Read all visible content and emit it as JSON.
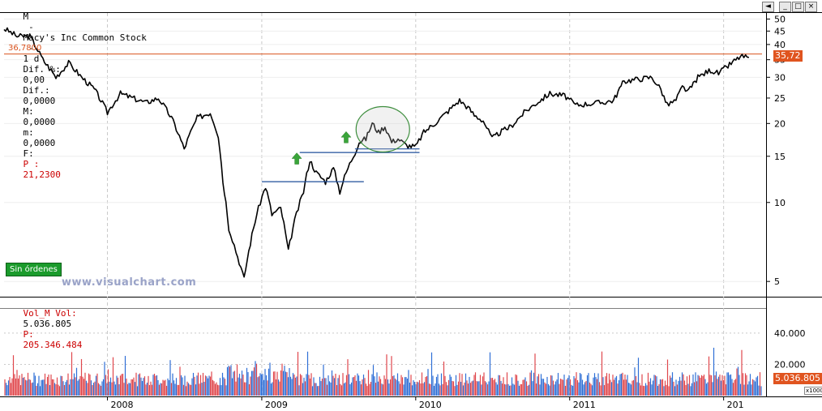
{
  "header": {
    "symbol": "M",
    "name": "Macy's Inc Common Stock",
    "period": "1 d",
    "dif_pct_label": "Dif. %:",
    "dif_pct": "0,00",
    "dif_label": "Dif.:",
    "dif": "0,0000",
    "max_label": "M:",
    "max": "0,0000",
    "min_label": "m:",
    "min": "0,0000",
    "f_label": "F:",
    "price_label": "P :",
    "price": "21,2300"
  },
  "volume_header": {
    "label": "Vol_M Vol:",
    "value": "5.036.805",
    "p_label": "P:",
    "p_value": "205.346.484"
  },
  "buttons": {
    "scroll": "◄",
    "minimize": "_",
    "maximize": "□",
    "close": "×"
  },
  "reference_line_label": "36,7800",
  "last_price_badge": "35,72",
  "last_volume_badge": "5.036.805",
  "orders_button": "Sin órdenes",
  "watermark": "www.visualchart.com",
  "volume_unit": "x1000",
  "colors": {
    "price_line": "#000000",
    "reference_line": "#d9531e",
    "trend_lines": "#1f4e9a",
    "arrows": "#3aa53a",
    "volume_up": "#2f6fd6",
    "volume_down": "#e0474c",
    "badge": "#e0541f",
    "grid": "#c9c9c9"
  },
  "chart_data": [
    {
      "type": "line",
      "y_scale": "log",
      "ylim": [
        4.5,
        52
      ],
      "y_ticks": [
        "5",
        "10",
        "15",
        "20",
        "25",
        "30",
        "35",
        "40",
        "45",
        "50"
      ],
      "x_ticks": [
        "2008",
        "2009",
        "2010",
        "2011",
        "201"
      ],
      "xlim": [
        "2007-05",
        "2012-04"
      ],
      "reference_line": 36.78,
      "series": [
        {
          "points": [
            [
              "2007-05-01",
              46
            ],
            [
              "2007-06-01",
              43
            ],
            [
              "2007-07-01",
              43
            ],
            [
              "2007-08-01",
              35
            ],
            [
              "2007-09-01",
              30
            ],
            [
              "2007-10-01",
              34
            ],
            [
              "2007-11-01",
              30
            ],
            [
              "2007-12-01",
              27
            ],
            [
              "2008-01-01",
              22
            ],
            [
              "2008-02-01",
              26
            ],
            [
              "2008-03-01",
              25
            ],
            [
              "2008-04-01",
              24
            ],
            [
              "2008-05-01",
              25
            ],
            [
              "2008-06-01",
              21
            ],
            [
              "2008-07-01",
              16
            ],
            [
              "2008-08-01",
              21
            ],
            [
              "2008-09-01",
              22
            ],
            [
              "2008-09-20",
              18
            ],
            [
              "2008-10-01",
              12
            ],
            [
              "2008-10-15",
              8
            ],
            [
              "2008-11-01",
              6.5
            ],
            [
              "2008-11-20",
              5.1
            ],
            [
              "2008-12-05",
              7.0
            ],
            [
              "2008-12-20",
              9.0
            ],
            [
              "2009-01-10",
              11.5
            ],
            [
              "2009-01-25",
              9.0
            ],
            [
              "2009-02-15",
              9.5
            ],
            [
              "2009-03-05",
              6.5
            ],
            [
              "2009-03-20",
              8.5
            ],
            [
              "2009-04-10",
              11.0
            ],
            [
              "2009-04-25",
              14.5
            ],
            [
              "2009-05-10",
              13.0
            ],
            [
              "2009-06-01",
              12.0
            ],
            [
              "2009-06-20",
              13.5
            ],
            [
              "2009-07-05",
              11.0
            ],
            [
              "2009-07-20",
              13.0
            ],
            [
              "2009-08-10",
              15.5
            ],
            [
              "2009-08-20",
              17.0
            ],
            [
              "2009-09-05",
              17.5
            ],
            [
              "2009-09-20",
              20.0
            ],
            [
              "2009-10-05",
              18.5
            ],
            [
              "2009-10-20",
              19.5
            ],
            [
              "2009-11-05",
              17.0
            ],
            [
              "2009-11-20",
              17.5
            ],
            [
              "2009-12-10",
              16.5
            ],
            [
              "2010-01-01",
              16.3
            ],
            [
              "2010-01-20",
              18.5
            ],
            [
              "2010-02-15",
              20.0
            ],
            [
              "2010-03-15",
              22.0
            ],
            [
              "2010-04-15",
              24.5
            ],
            [
              "2010-05-05",
              23.0
            ],
            [
              "2010-05-20",
              21.5
            ],
            [
              "2010-06-10",
              20.5
            ],
            [
              "2010-07-01",
              17.5
            ],
            [
              "2010-07-20",
              18.5
            ],
            [
              "2010-08-15",
              19.5
            ],
            [
              "2010-09-15",
              22.0
            ],
            [
              "2010-10-15",
              24.0
            ],
            [
              "2010-11-15",
              26.0
            ],
            [
              "2010-12-20",
              25.5
            ],
            [
              "2011-01-15",
              23.5
            ],
            [
              "2011-02-15",
              23.8
            ],
            [
              "2011-03-15",
              24.0
            ],
            [
              "2011-04-15",
              24.5
            ],
            [
              "2011-05-10",
              29.0
            ],
            [
              "2011-06-10",
              29.5
            ],
            [
              "2011-07-15",
              30.0
            ],
            [
              "2011-08-05",
              27.0
            ],
            [
              "2011-08-20",
              23.5
            ],
            [
              "2011-09-10",
              24.5
            ],
            [
              "2011-09-25",
              27.5
            ],
            [
              "2011-10-10",
              26.5
            ],
            [
              "2011-11-01",
              30.0
            ],
            [
              "2011-12-01",
              32.0
            ],
            [
              "2011-12-20",
              31.0
            ],
            [
              "2012-01-15",
              33.5
            ],
            [
              "2012-02-10",
              36.0
            ],
            [
              "2012-03-01",
              35.72
            ]
          ]
        }
      ],
      "annotations": {
        "trend_lines": [
          {
            "x1": "2009-01-01",
            "x2": "2009-08-31",
            "y": 12.0
          },
          {
            "x1": "2009-04-01",
            "x2": "2010-01-10",
            "y": 15.5
          },
          {
            "x1": "2009-08-10",
            "x2": "2010-01-10",
            "y": 16.0
          }
        ],
        "up_arrows": [
          {
            "x": "2009-03-25",
            "y": 14.6
          },
          {
            "x": "2009-07-20",
            "y": 17.6
          }
        ],
        "ellipse": {
          "x_center": "2009-10-15",
          "y_center": 19.0
        }
      }
    },
    {
      "type": "bar",
      "title": "Vol_M Vol",
      "y_ticks": [
        "20.000",
        "40.000"
      ],
      "ylim": [
        0,
        55000
      ],
      "unit": "x1000",
      "last_value": 5036.805
    }
  ]
}
